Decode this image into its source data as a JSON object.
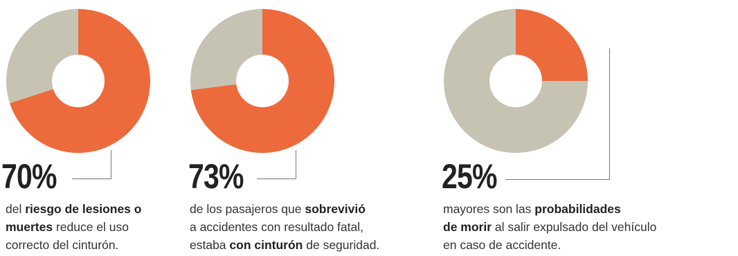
{
  "colors": {
    "accent": "#EC6A3B",
    "remainder": "#C6C3B3",
    "hole": "#FFFFFF",
    "text": "#333333"
  },
  "chart_data": [
    {
      "type": "pie",
      "title": "",
      "value_label": "70%",
      "slices": [
        {
          "value": 70,
          "color": "#EC6A3B"
        },
        {
          "value": 30,
          "color": "#C6C3B3"
        }
      ],
      "description": [
        {
          "text": "del ",
          "bold": false
        },
        {
          "text": "riesgo de lesiones o",
          "bold": true
        },
        {
          "br": true
        },
        {
          "text": "muertes",
          "bold": true
        },
        {
          "text": " reduce el uso",
          "bold": false
        },
        {
          "br": true
        },
        {
          "text": "correcto del cinturón.",
          "bold": false
        }
      ]
    },
    {
      "type": "pie",
      "title": "",
      "value_label": "73%",
      "slices": [
        {
          "value": 73,
          "color": "#EC6A3B"
        },
        {
          "value": 27,
          "color": "#C6C3B3"
        }
      ],
      "description": [
        {
          "text": "de los pasajeros que ",
          "bold": false
        },
        {
          "text": "sobrevivió",
          "bold": true
        },
        {
          "br": true
        },
        {
          "text": "a accidentes con resultado fatal,",
          "bold": false
        },
        {
          "br": true
        },
        {
          "text": "estaba ",
          "bold": false
        },
        {
          "text": "con cinturón",
          "bold": true
        },
        {
          "text": " de seguridad.",
          "bold": false
        }
      ]
    },
    {
      "type": "pie",
      "title": "",
      "value_label": "25%",
      "slices": [
        {
          "value": 25,
          "color": "#EC6A3B"
        },
        {
          "value": 75,
          "color": "#C6C3B3"
        }
      ],
      "description": [
        {
          "text": "mayores son las ",
          "bold": false
        },
        {
          "text": "probabilidades",
          "bold": true
        },
        {
          "br": true
        },
        {
          "text": "de morir",
          "bold": true
        },
        {
          "text": " al salir expulsado del vehículo",
          "bold": false
        },
        {
          "br": true
        },
        {
          "text": "en caso de accidente.",
          "bold": false
        }
      ]
    }
  ]
}
